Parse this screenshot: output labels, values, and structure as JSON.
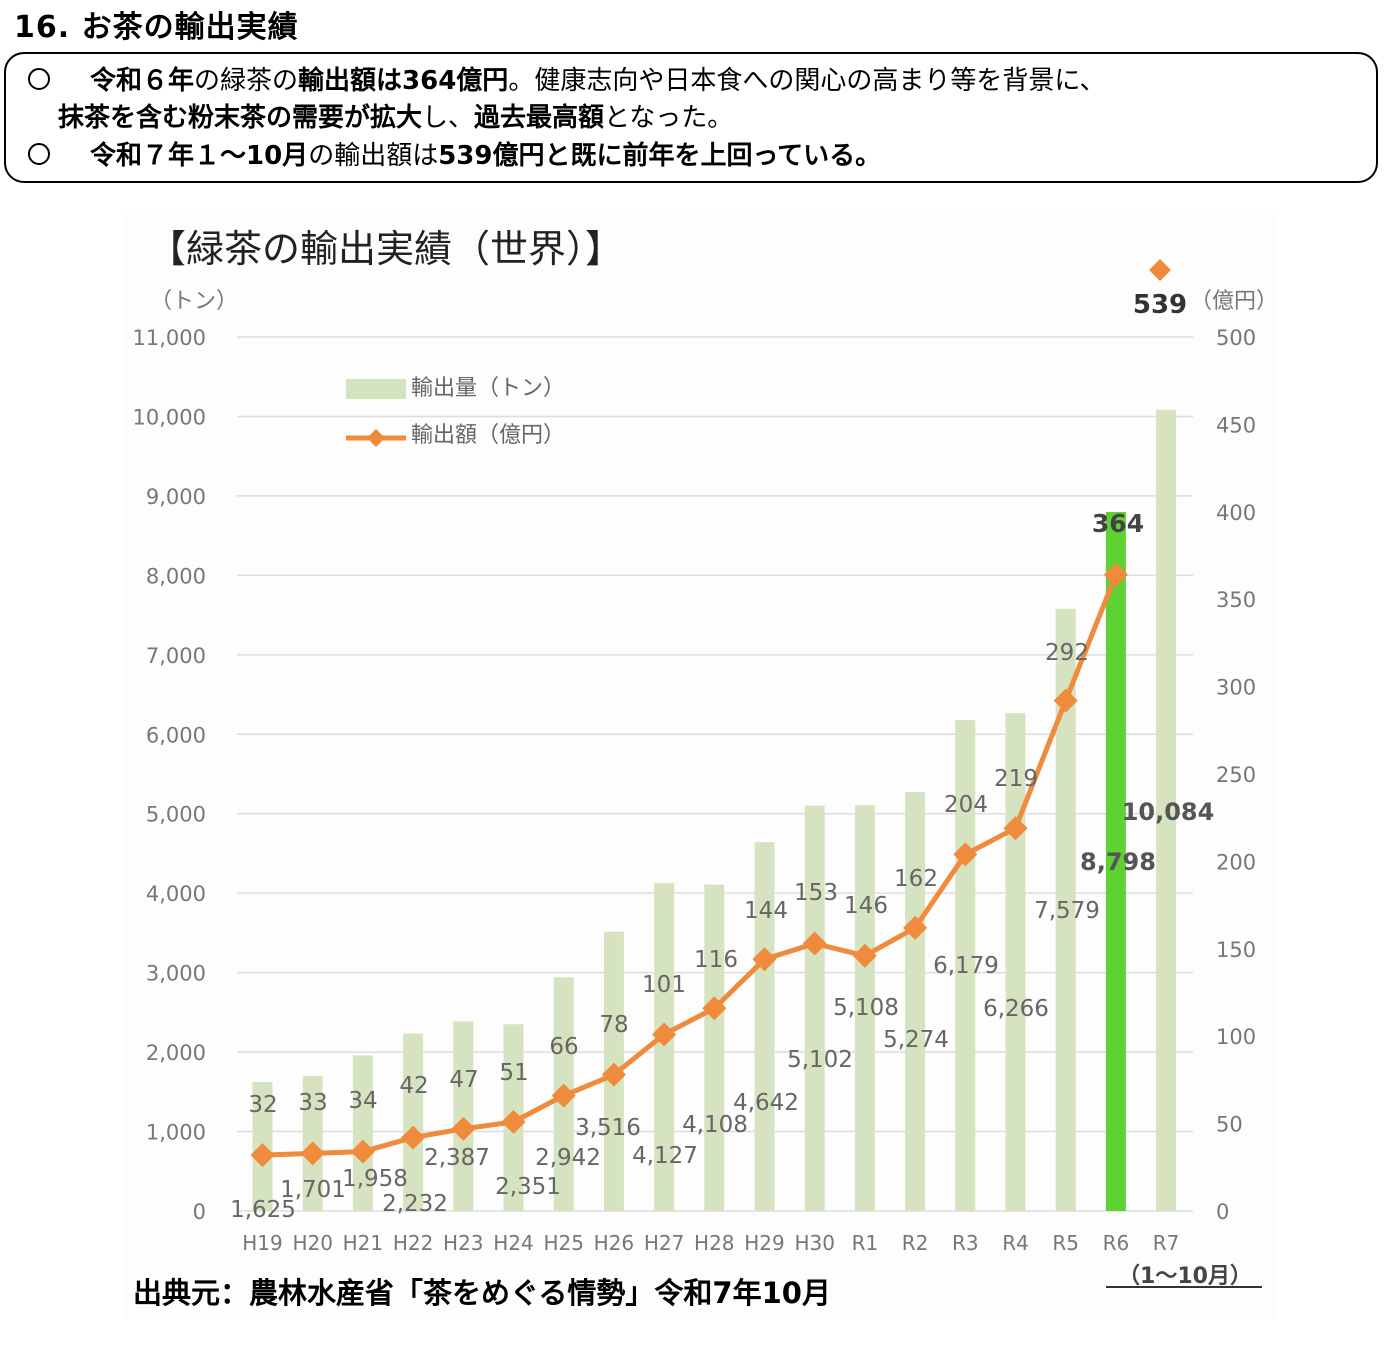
{
  "header": {
    "title": "16. お茶の輸出実績"
  },
  "summary": {
    "line1": {
      "p1": "令和６年",
      "p2": "の緑茶の",
      "p3": "輸出額は364億円",
      "p4": "。健康志向や日本食への関心の高まり等を背景に、"
    },
    "line2": {
      "p1": "抹茶を含む粉末茶の需要が拡大",
      "p2": "し、",
      "p3": "過去最高額",
      "p4": "となった。"
    },
    "line3": {
      "p1": "令和７年１～10月",
      "p2": "の輸出額は",
      "p3": "539億円と既に前年を上回っている。"
    }
  },
  "chart_data": {
    "type": "bar+line",
    "title": "【緑茶の輸出実績（世界）】",
    "y_left_label": "（トン）",
    "y_right_label": "（億円）",
    "y_left_lim": [
      0,
      11000
    ],
    "y_left_ticks": [
      "0",
      "1,000",
      "2,000",
      "3,000",
      "4,000",
      "5,000",
      "6,000",
      "7,000",
      "8,000",
      "9,000",
      "10,000",
      "11,000"
    ],
    "y_right_lim": [
      0,
      500
    ],
    "y_right_ticks": [
      "0",
      "50",
      "100",
      "150",
      "200",
      "250",
      "300",
      "350",
      "400",
      "450",
      "500"
    ],
    "categories": [
      "H19",
      "H20",
      "H21",
      "H22",
      "H23",
      "H24",
      "H25",
      "H26",
      "H27",
      "H28",
      "H29",
      "H30",
      "R1",
      "R2",
      "R3",
      "R4",
      "R5",
      "R6",
      "R7"
    ],
    "category_note": "（1～10月）",
    "legend": [
      "輸出量（トン）",
      "輸出額（億円）"
    ],
    "series": [
      {
        "name": "輸出量（トン）",
        "type": "bar",
        "axis": "left",
        "values": [
          1625,
          1701,
          1958,
          2232,
          2387,
          2351,
          2942,
          3516,
          4127,
          4108,
          4642,
          5102,
          5108,
          5274,
          6179,
          6266,
          7579,
          8798,
          10084
        ],
        "labels": [
          "1,625",
          "1,701",
          "1,958",
          "2,232",
          "2,387",
          "2,351",
          "2,942",
          "3,516",
          "4,127",
          "4,108",
          "4,642",
          "5,102",
          "5,108",
          "5,274",
          "6,179",
          "6,266",
          "7,579",
          "8,798",
          "10,084"
        ],
        "color": "#d6e3c0",
        "highlight_color": "#5ed133"
      },
      {
        "name": "輸出額（億円）",
        "type": "line",
        "axis": "right",
        "values": [
          32,
          33,
          34,
          42,
          47,
          51,
          66,
          78,
          101,
          116,
          144,
          153,
          146,
          162,
          204,
          219,
          292,
          364,
          539
        ],
        "labels": [
          "32",
          "33",
          "34",
          "42",
          "47",
          "51",
          "66",
          "78",
          "101",
          "116",
          "144",
          "153",
          "146",
          "162",
          "204",
          "219",
          "292",
          "364",
          "539"
        ],
        "color": "#f08a3c"
      }
    ],
    "grid": true,
    "legend_position": "top-left"
  },
  "source": {
    "text": "出典元：農林水産省「茶をめぐる情勢」令和7年10月"
  }
}
